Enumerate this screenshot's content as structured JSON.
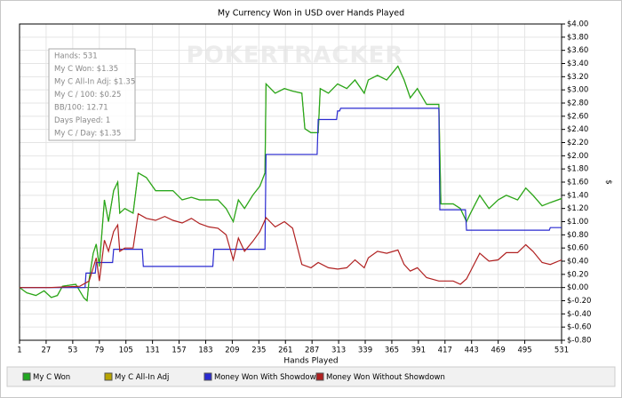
{
  "chart_data": {
    "type": "line",
    "title": "My Currency Won in USD over Hands Played",
    "x_label": "Hands Played",
    "y_label": "$",
    "watermark": "POKERTRACKER",
    "info_box": [
      "Hands: 531",
      "My C Won: $1.35",
      "My C All-In Adj: $1.35",
      "My C / 100: $0.25",
      "BB/100: 12.71",
      "Days Played: 1",
      "My C / Day: $1.35"
    ],
    "grid": true,
    "y_axis_side": "right",
    "xlim": [
      1,
      531
    ],
    "xticks": [
      1,
      27,
      53,
      79,
      105,
      131,
      157,
      183,
      209,
      235,
      261,
      287,
      313,
      339,
      365,
      391,
      417,
      443,
      469,
      495,
      531
    ],
    "ylim": [
      -0.8,
      4.0
    ],
    "yticks": [
      {
        "value": 4.0,
        "label": "$4.00"
      },
      {
        "value": 3.8,
        "label": "$3.80"
      },
      {
        "value": 3.6,
        "label": "$3.60"
      },
      {
        "value": 3.4,
        "label": "$3.40"
      },
      {
        "value": 3.2,
        "label": "$3.20"
      },
      {
        "value": 3.0,
        "label": "$3.00"
      },
      {
        "value": 2.8,
        "label": "$2.80"
      },
      {
        "value": 2.6,
        "label": "$2.60"
      },
      {
        "value": 2.4,
        "label": "$2.40"
      },
      {
        "value": 2.2,
        "label": "$2.20"
      },
      {
        "value": 2.0,
        "label": "$2.00"
      },
      {
        "value": 1.8,
        "label": "$1.80"
      },
      {
        "value": 1.6,
        "label": "$1.60"
      },
      {
        "value": 1.4,
        "label": "$1.40"
      },
      {
        "value": 1.2,
        "label": "$1.20"
      },
      {
        "value": 1.0,
        "label": "$1.00"
      },
      {
        "value": 0.8,
        "label": "$0.80"
      },
      {
        "value": 0.6,
        "label": "$0.60"
      },
      {
        "value": 0.4,
        "label": "$0.40"
      },
      {
        "value": 0.2,
        "label": "$0.20"
      },
      {
        "value": 0,
        "label": "$0.00"
      },
      {
        "value": -0.2,
        "label": "$-0.20"
      },
      {
        "value": -0.4,
        "label": "$-0.40"
      },
      {
        "value": -0.6,
        "label": "$-0.60"
      },
      {
        "value": -0.8,
        "label": "$-0.80"
      }
    ],
    "series": [
      {
        "name": "My C All-In Adj",
        "color": "#b8a400",
        "x": [
          1,
          8,
          17,
          25,
          32,
          38,
          43,
          56,
          64,
          67,
          69,
          73,
          76,
          79,
          84,
          88,
          93,
          97,
          99,
          104,
          112,
          117,
          125,
          134,
          143,
          151,
          160,
          169,
          177,
          186,
          195,
          203,
          210,
          215,
          221,
          229,
          236,
          241,
          242,
          251,
          260,
          268,
          277,
          280,
          286,
          293,
          295,
          303,
          312,
          321,
          329,
          338,
          342,
          351,
          360,
          371,
          377,
          383,
          390,
          399,
          411,
          413,
          425,
          432,
          438,
          442,
          451,
          460,
          469,
          477,
          488,
          496,
          503,
          512,
          520,
          531
        ],
        "values": [
          0,
          -0.08,
          -0.12,
          -0.05,
          -0.15,
          -0.12,
          0.02,
          0.05,
          -0.16,
          -0.2,
          0.12,
          0.52,
          0.66,
          0.32,
          1.33,
          1.0,
          1.47,
          1.6,
          1.13,
          1.2,
          1.13,
          1.74,
          1.67,
          1.47,
          1.47,
          1.47,
          1.33,
          1.37,
          1.33,
          1.33,
          1.33,
          1.2,
          1.0,
          1.33,
          1.2,
          1.4,
          1.54,
          1.74,
          3.09,
          2.95,
          3.02,
          2.98,
          2.95,
          2.41,
          2.35,
          2.35,
          3.02,
          2.95,
          3.09,
          3.02,
          3.15,
          2.95,
          3.15,
          3.22,
          3.15,
          3.36,
          3.15,
          2.88,
          3.02,
          2.78,
          2.78,
          1.27,
          1.27,
          1.2,
          1.0,
          1.13,
          1.4,
          1.2,
          1.33,
          1.4,
          1.33,
          1.51,
          1.4,
          1.24,
          1.29,
          1.35
        ]
      },
      {
        "name": "My C Won",
        "color": "#22a822",
        "x": [
          1,
          8,
          17,
          25,
          32,
          38,
          43,
          56,
          64,
          67,
          69,
          73,
          76,
          79,
          84,
          88,
          93,
          97,
          99,
          104,
          112,
          117,
          125,
          134,
          143,
          151,
          160,
          169,
          177,
          186,
          195,
          203,
          210,
          215,
          221,
          229,
          236,
          241,
          242,
          251,
          260,
          268,
          277,
          280,
          286,
          293,
          295,
          303,
          312,
          321,
          329,
          338,
          342,
          351,
          360,
          371,
          377,
          383,
          390,
          399,
          411,
          413,
          425,
          432,
          438,
          442,
          451,
          460,
          469,
          477,
          488,
          496,
          503,
          512,
          520,
          531
        ],
        "values": [
          0,
          -0.08,
          -0.12,
          -0.05,
          -0.15,
          -0.12,
          0.02,
          0.05,
          -0.16,
          -0.2,
          0.12,
          0.52,
          0.66,
          0.32,
          1.33,
          1.0,
          1.47,
          1.6,
          1.13,
          1.2,
          1.13,
          1.74,
          1.67,
          1.47,
          1.47,
          1.47,
          1.33,
          1.37,
          1.33,
          1.33,
          1.33,
          1.2,
          1.0,
          1.33,
          1.2,
          1.4,
          1.54,
          1.74,
          3.09,
          2.95,
          3.02,
          2.98,
          2.95,
          2.41,
          2.35,
          2.35,
          3.02,
          2.95,
          3.09,
          3.02,
          3.15,
          2.95,
          3.15,
          3.22,
          3.15,
          3.36,
          3.15,
          2.88,
          3.02,
          2.78,
          2.78,
          1.27,
          1.27,
          1.2,
          1.0,
          1.13,
          1.4,
          1.2,
          1.33,
          1.4,
          1.33,
          1.51,
          1.4,
          1.24,
          1.29,
          1.35
        ]
      },
      {
        "name": "Money Won With Showdown",
        "color": "#2a2ad0",
        "x": [
          1,
          65,
          66,
          75,
          76,
          92,
          93,
          121,
          122,
          190,
          191,
          241,
          242,
          292,
          293,
          311,
          312,
          314,
          315,
          411,
          412,
          437,
          438,
          519,
          520,
          531
        ],
        "values": [
          0,
          0,
          0.22,
          0.22,
          0.38,
          0.38,
          0.58,
          0.58,
          0.32,
          0.32,
          0.58,
          0.58,
          2.02,
          2.02,
          2.55,
          2.55,
          2.68,
          2.68,
          2.72,
          2.72,
          1.18,
          1.18,
          0.87,
          0.87,
          0.91,
          0.91
        ]
      },
      {
        "name": "Money Won Without Showdown",
        "color": "#b02020",
        "x": [
          1,
          30,
          60,
          69,
          73,
          76,
          79,
          84,
          88,
          93,
          97,
          99,
          104,
          112,
          117,
          125,
          134,
          143,
          151,
          160,
          169,
          177,
          186,
          195,
          203,
          210,
          215,
          221,
          229,
          236,
          242,
          251,
          260,
          268,
          277,
          286,
          293,
          303,
          312,
          321,
          329,
          338,
          342,
          351,
          360,
          371,
          377,
          383,
          390,
          399,
          411,
          425,
          432,
          438,
          442,
          451,
          460,
          469,
          477,
          488,
          496,
          503,
          512,
          520,
          531
        ],
        "values": [
          0,
          0,
          0.02,
          0.1,
          0.3,
          0.45,
          0.1,
          0.72,
          0.55,
          0.85,
          0.95,
          0.55,
          0.6,
          0.6,
          1.12,
          1.05,
          1.02,
          1.08,
          1.02,
          0.98,
          1.05,
          0.97,
          0.92,
          0.9,
          0.8,
          0.42,
          0.75,
          0.55,
          0.7,
          0.85,
          1.06,
          0.92,
          1.0,
          0.9,
          0.35,
          0.3,
          0.38,
          0.3,
          0.28,
          0.3,
          0.42,
          0.3,
          0.45,
          0.55,
          0.52,
          0.57,
          0.35,
          0.25,
          0.3,
          0.15,
          0.1,
          0.1,
          0.05,
          0.13,
          0.25,
          0.52,
          0.4,
          0.42,
          0.53,
          0.53,
          0.65,
          0.55,
          0.38,
          0.35,
          0.42
        ]
      }
    ],
    "legend_order": [
      1,
      0,
      2,
      3
    ]
  }
}
